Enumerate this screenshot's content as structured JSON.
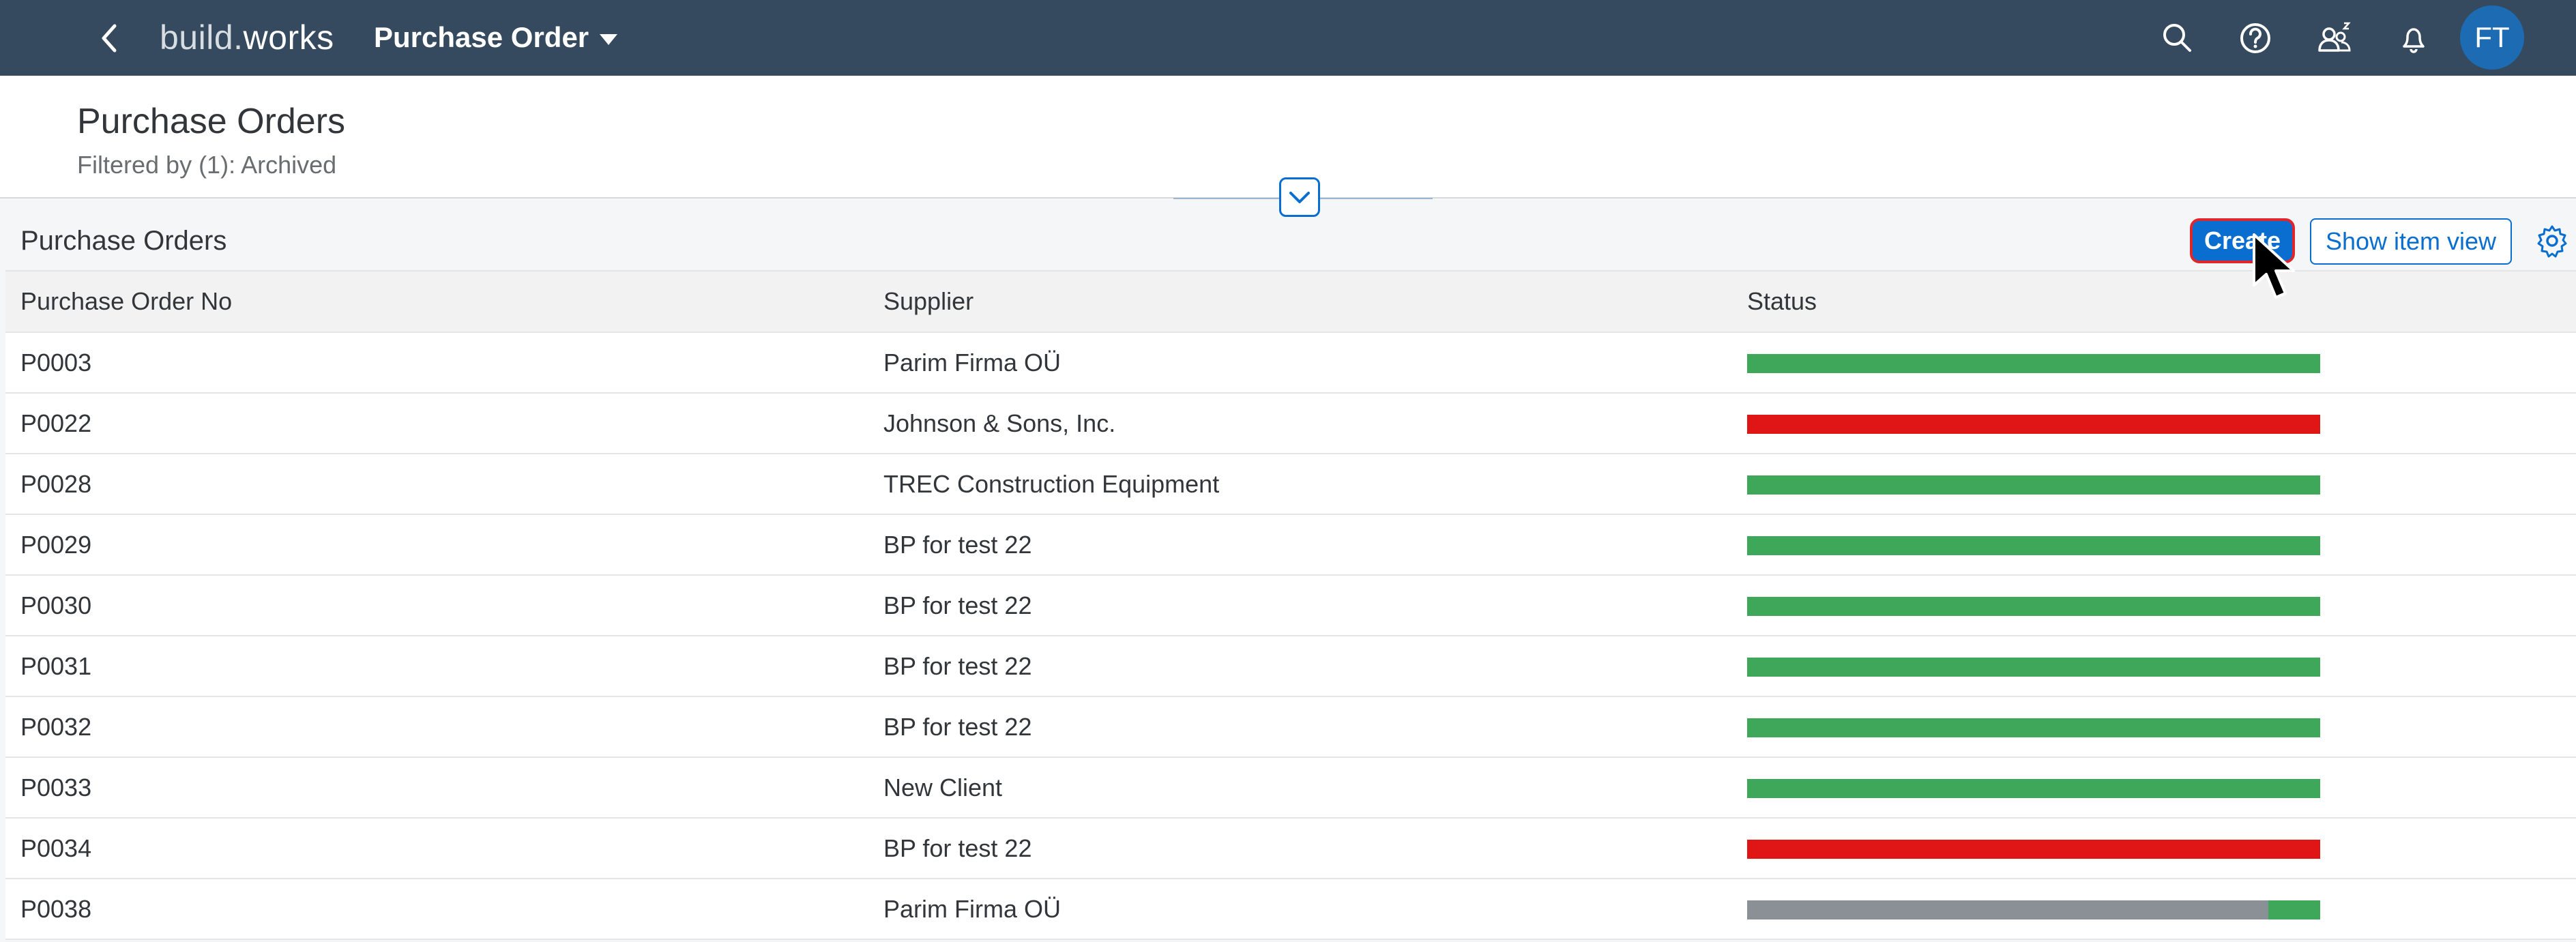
{
  "shell": {
    "logo_part1": "build.",
    "logo_part2": "works",
    "app_title": "Purchase Order",
    "avatar_initials": "FT"
  },
  "header": {
    "title": "Purchase Orders",
    "filter_text": "Filtered by (1): Archived"
  },
  "toolbar": {
    "title": "Purchase Orders",
    "create_label": "Create",
    "show_item_view_label": "Show item view"
  },
  "table": {
    "columns": [
      "Purchase Order No",
      "Supplier",
      "Status"
    ],
    "rows": [
      {
        "po": "P0003",
        "supplier": "Parim Firma OÜ",
        "status": [
          {
            "color": "#3fa75a",
            "fraction": 1.0
          }
        ]
      },
      {
        "po": "P0022",
        "supplier": "Johnson & Sons, Inc.",
        "status": [
          {
            "color": "#e01515",
            "fraction": 1.0
          }
        ]
      },
      {
        "po": "P0028",
        "supplier": "TREC Construction Equipment",
        "status": [
          {
            "color": "#3fa75a",
            "fraction": 1.0
          }
        ]
      },
      {
        "po": "P0029",
        "supplier": "BP for test 22",
        "status": [
          {
            "color": "#3fa75a",
            "fraction": 1.0
          }
        ]
      },
      {
        "po": "P0030",
        "supplier": "BP for test 22",
        "status": [
          {
            "color": "#3fa75a",
            "fraction": 1.0
          }
        ]
      },
      {
        "po": "P0031",
        "supplier": "BP for test 22",
        "status": [
          {
            "color": "#3fa75a",
            "fraction": 1.0
          }
        ]
      },
      {
        "po": "P0032",
        "supplier": "BP for test 22",
        "status": [
          {
            "color": "#3fa75a",
            "fraction": 1.0
          }
        ]
      },
      {
        "po": "P0033",
        "supplier": "New Client",
        "status": [
          {
            "color": "#3fa75a",
            "fraction": 1.0
          }
        ]
      },
      {
        "po": "P0034",
        "supplier": "BP for test 22",
        "status": [
          {
            "color": "#e01515",
            "fraction": 1.0
          }
        ]
      },
      {
        "po": "P0038",
        "supplier": "Parim Firma OÜ",
        "status": [
          {
            "color": "#8a9095",
            "fraction": 0.91
          },
          {
            "color": "#3fa75a",
            "fraction": 0.09
          }
        ]
      }
    ]
  },
  "icons": {
    "back": "chevron-left-icon",
    "search": "search-icon",
    "help": "help-icon",
    "people": "people-icon",
    "bell": "bell-icon",
    "collapse": "chevron-down-icon",
    "settings": "gear-icon"
  },
  "colors": {
    "shell_bg": "#354a5f",
    "accent": "#0a6ed1",
    "create_border": "#e0262b",
    "status_green": "#3fa75a",
    "status_red": "#e01515",
    "status_grey": "#8a9095"
  }
}
